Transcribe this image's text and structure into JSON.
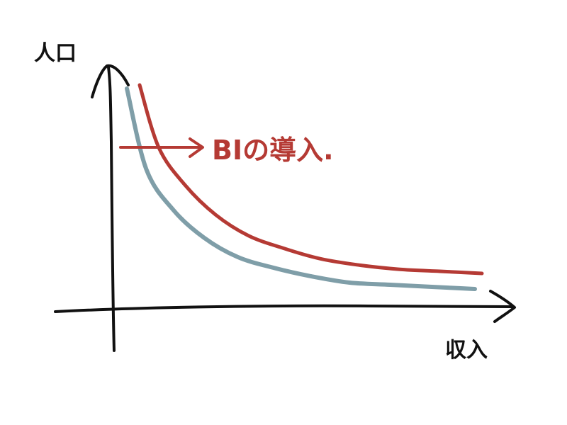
{
  "chart_data": {
    "type": "line",
    "title": "",
    "xlabel": "収入",
    "ylabel": "人口",
    "grid": false,
    "legend": "none",
    "ticks": "none",
    "series": [
      {
        "color": "#7f9ea8",
        "shape": "decreasing-convex",
        "relative_values": [
          1.0,
          0.62,
          0.43,
          0.3,
          0.21,
          0.16,
          0.12,
          0.09,
          0.08,
          0.07,
          0.06
        ]
      },
      {
        "color": "#b53a34",
        "shape": "decreasing-convex",
        "relative_values": [
          1.0,
          0.7,
          0.52,
          0.38,
          0.28,
          0.22,
          0.17,
          0.14,
          0.12,
          0.11,
          0.1
        ]
      }
    ],
    "annotation": {
      "text": "BIの導入.",
      "color": "#b53a34",
      "arrow": "right"
    }
  },
  "colors": {
    "axis": "#111111",
    "accent": "#b53a34",
    "baseline_curve": "#7f9ea8"
  }
}
